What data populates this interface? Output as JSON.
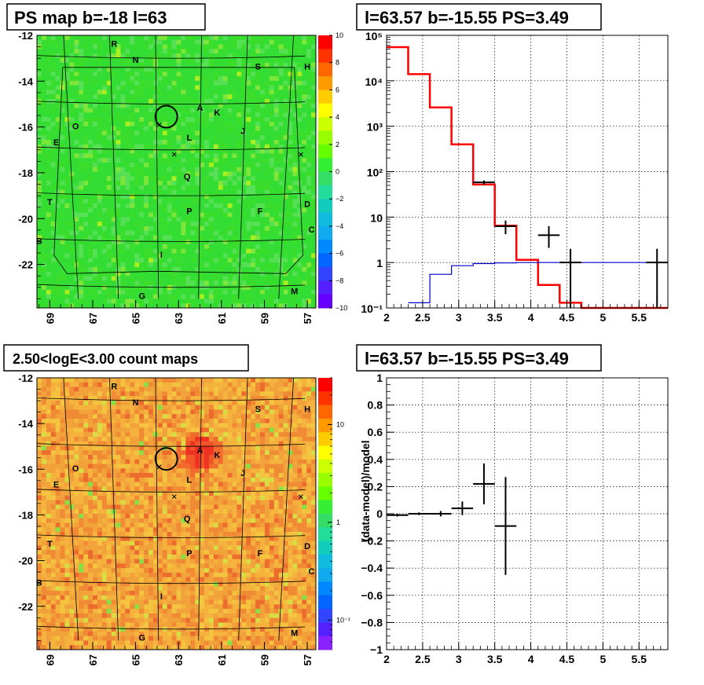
{
  "panels": {
    "ps_map": {
      "title": "PS map b=-18 l=63",
      "y_ticks": [
        "-12",
        "-14",
        "-16",
        "-18",
        "-20",
        "-22"
      ],
      "x_ticks": [
        "69",
        "67",
        "65",
        "63",
        "61",
        "59",
        "57"
      ],
      "colorbar_ticks": [
        "10",
        "8",
        "6",
        "4",
        "2",
        "0",
        "−2",
        "−4",
        "−6",
        "−8",
        "−10"
      ],
      "source_labels": [
        "R",
        "N",
        "S",
        "H",
        "A",
        "K",
        "O",
        "L",
        "J",
        "E",
        "Q",
        "T",
        "P",
        "F",
        "D",
        "C",
        "B",
        "I",
        "G",
        "M"
      ]
    },
    "count_map": {
      "title": "2.50<logE<3.00 count maps",
      "y_ticks": [
        "-12",
        "-14",
        "-16",
        "-18",
        "-20",
        "-22"
      ],
      "x_ticks": [
        "69",
        "67",
        "65",
        "63",
        "61",
        "59",
        "57"
      ],
      "colorbar_ticks": [
        "10",
        "1",
        "10⁻¹"
      ],
      "source_labels": [
        "R",
        "N",
        "S",
        "H",
        "A",
        "K",
        "O",
        "L",
        "J",
        "E",
        "Q",
        "T",
        "P",
        "F",
        "D",
        "C",
        "B",
        "I",
        "G",
        "M"
      ]
    },
    "spectrum": {
      "title": "l=63.57 b=-15.55 PS=3.49"
    },
    "residual": {
      "title": "l=63.57 b=-15.55 PS=3.49"
    }
  },
  "chart_data": [
    {
      "type": "heatmap",
      "title": "PS map b=-18 l=63",
      "xlim": [
        69.6,
        56.6
      ],
      "ylim": [
        -23.9,
        -12.0
      ],
      "x_ticks": [
        69,
        67,
        65,
        63,
        61,
        59,
        57
      ],
      "y_ticks": [
        -12,
        -14,
        -16,
        -18,
        -20,
        -22
      ],
      "z_range": [
        -10,
        10
      ],
      "dominant_value": 1,
      "colors": {
        "background": "#33dd33",
        "low": "#6600ff",
        "high": "#ff0000"
      },
      "circle_center": [
        63.57,
        -15.55
      ],
      "markers": [
        [
          63.2,
          -17.2
        ],
        [
          57.3,
          -17.2
        ],
        [
          63.9,
          -15.9
        ]
      ]
    },
    {
      "type": "line",
      "title": "l=63.57 b=-15.55 PS=3.49",
      "log_y": true,
      "xlim": [
        2.0,
        5.9
      ],
      "ylim": [
        0.1,
        100000
      ],
      "x_ticks": [
        2,
        2.5,
        3,
        3.5,
        4,
        4.5,
        5,
        5.5
      ],
      "y_ticks": [
        "10⁻¹",
        "1",
        "10",
        "10²",
        "10³",
        "10⁴",
        "10⁵"
      ],
      "grid": true,
      "series": [
        {
          "color": "#ff0000",
          "step_edges": [
            2.0,
            2.3,
            2.6,
            2.9,
            3.2,
            3.5,
            3.8,
            4.1,
            4.4,
            4.7,
            5.0,
            5.9
          ],
          "values": [
            55000,
            14000,
            2600,
            400,
            52,
            6.5,
            1.15,
            0.32,
            0.13,
            0.1,
            0.1
          ]
        },
        {
          "color": "#0000cc",
          "step_edges": [
            2.3,
            2.6,
            2.9,
            3.2,
            3.5,
            3.8,
            4.1,
            4.4,
            4.7,
            5.0,
            5.9
          ],
          "values": [
            0.13,
            0.55,
            0.85,
            0.95,
            0.98,
            1.0,
            1.0,
            1.0,
            1.0,
            1.0
          ]
        },
        {
          "color": "#000000",
          "points": [
            {
              "x": 3.35,
              "y": 58,
              "xerr": 0.15,
              "ylo": 52,
              "yhi": 64
            },
            {
              "x": 3.65,
              "y": 6.3,
              "xerr": 0.15,
              "ylo": 4.2,
              "yhi": 8.4
            },
            {
              "x": 4.25,
              "y": 4.0,
              "xerr": 0.15,
              "ylo": 2.1,
              "yhi": 6.3
            },
            {
              "x": 4.55,
              "y": 1.0,
              "xerr": 0.15,
              "ylo": 0.1,
              "yhi": 2.0
            },
            {
              "x": 5.75,
              "y": 1.0,
              "xerr": 0.15,
              "ylo": 0.1,
              "yhi": 2.0
            }
          ]
        }
      ]
    },
    {
      "type": "scatter",
      "title": "l=63.57 b=-15.55 PS=3.49",
      "ylabel": "(data-model)/model",
      "xlim": [
        2.0,
        5.9
      ],
      "ylim": [
        -1,
        1
      ],
      "x_ticks": [
        2,
        2.5,
        3,
        3.5,
        4,
        4.5,
        5,
        5.5
      ],
      "y_ticks": [
        1,
        0.8,
        0.6,
        0.4,
        0.2,
        0,
        -0.2,
        -0.4,
        -0.6,
        -0.8,
        -1
      ],
      "grid": true,
      "points": [
        {
          "x": 2.15,
          "y": -0.01,
          "xerr": 0.15,
          "yerr": 0.01
        },
        {
          "x": 2.45,
          "y": 0.0,
          "xerr": 0.15,
          "yerr": 0.01
        },
        {
          "x": 2.75,
          "y": 0.0,
          "xerr": 0.15,
          "yerr": 0.02
        },
        {
          "x": 3.05,
          "y": 0.04,
          "xerr": 0.15,
          "yerr": 0.05
        },
        {
          "x": 3.35,
          "y": 0.22,
          "xerr": 0.15,
          "yerr": 0.15
        },
        {
          "x": 3.65,
          "y": -0.09,
          "xerr": 0.15,
          "yerr": 0.36
        }
      ]
    },
    {
      "type": "heatmap",
      "title": "2.50<logE<3.00 count maps",
      "xlim": [
        69.6,
        56.6
      ],
      "ylim": [
        -23.9,
        -12.0
      ],
      "x_ticks": [
        69,
        67,
        65,
        63,
        61,
        59,
        57
      ],
      "y_ticks": [
        -12,
        -14,
        -16,
        -18,
        -20,
        -22
      ],
      "z_log": true,
      "z_range": [
        0.05,
        30
      ],
      "dominant_value": 5,
      "colors": {
        "background": "#f2a23a",
        "hot": "#ee3322",
        "low": "#9922ff"
      },
      "circle_center": [
        63.57,
        -15.55
      ],
      "hotspot": [
        62.0,
        -15.3
      ]
    }
  ]
}
